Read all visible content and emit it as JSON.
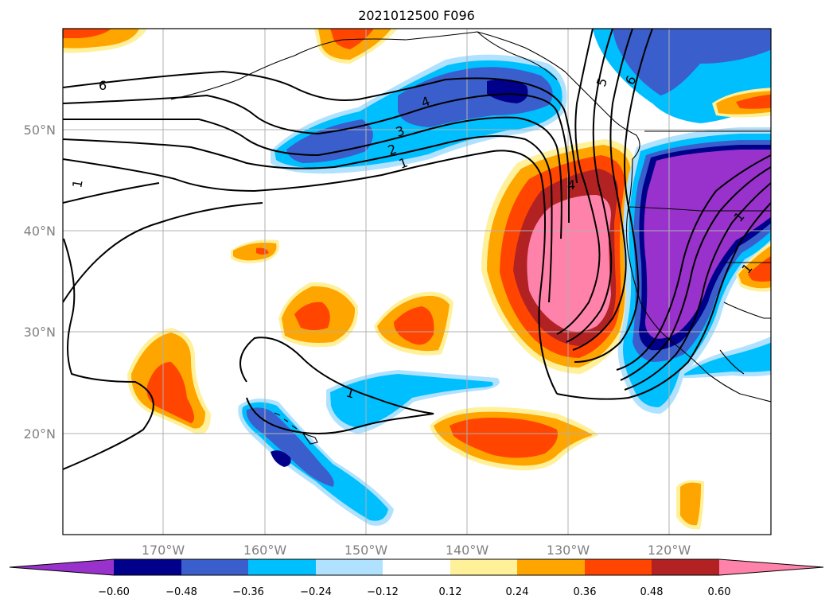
{
  "title": "2021012500 F096",
  "map": {
    "lat_ticks": [
      "50°N",
      "40°N",
      "30°N",
      "20°N"
    ],
    "lon_ticks": [
      "170°W",
      "160°W",
      "150°W",
      "140°W",
      "130°W",
      "120°W"
    ],
    "contour_labels": [
      "6",
      "4",
      "3",
      "2",
      "1",
      "1",
      "1",
      "4",
      "5",
      "6",
      "1",
      "1"
    ]
  },
  "colorbar": {
    "ticks": [
      "−0.60",
      "−0.48",
      "−0.36",
      "−0.24",
      "−0.12",
      "0.12",
      "0.24",
      "0.36",
      "0.48",
      "0.60"
    ],
    "colors": [
      "#9932cc",
      "#00008b",
      "#3a5fcd",
      "#00bfff",
      "#b0e2ff",
      "#ffffff",
      "#fff09a",
      "#ffa500",
      "#ff4500",
      "#b22222",
      "#ff82ab",
      "#ff82ab"
    ]
  },
  "colors": {
    "purple": "#9932cc",
    "navy": "#00008b",
    "blue": "#3a5fcd",
    "cyan": "#00bfff",
    "lightblue": "#b0e2ff",
    "yellow": "#fff09a",
    "orange": "#ffa500",
    "redorange": "#ff4500",
    "firebrick": "#b22222",
    "pink": "#ff82ab"
  }
}
